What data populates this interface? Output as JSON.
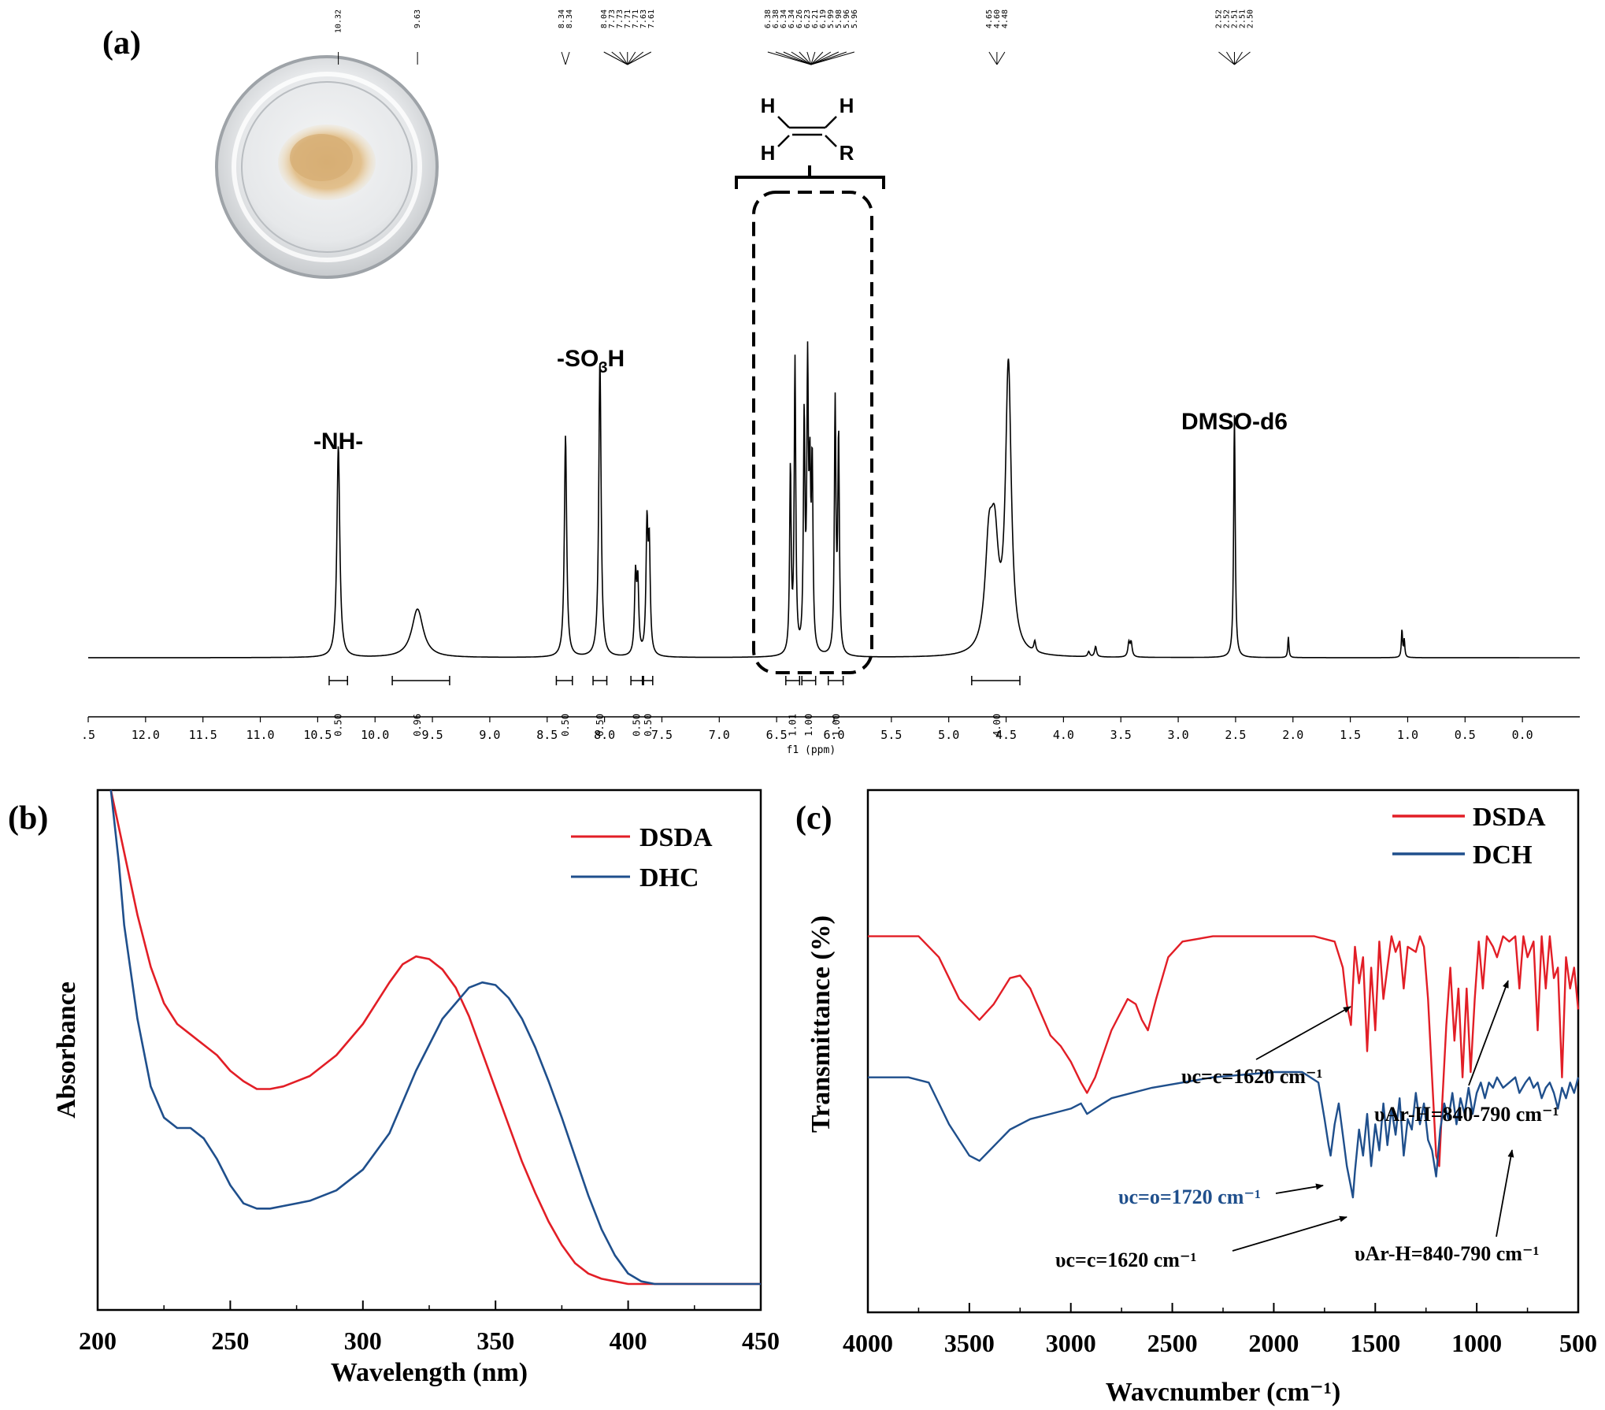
{
  "chart_data": [
    {
      "type": "line",
      "panel": "(a)",
      "xlabel": "f1 (ppm)",
      "xlim": [
        12.5,
        -0.5
      ],
      "xticks": [
        ".5",
        "12.0",
        "11.5",
        "11.0",
        "10.5",
        "10.0",
        "9.5",
        "9.0",
        "8.5",
        "8.0",
        "7.5",
        "7.0",
        "6.5",
        "6.0",
        "5.5",
        "5.0",
        "4.5",
        "4.0",
        "3.5",
        "3.0",
        "2.5",
        "2.0",
        "1.5",
        "1.0",
        "0.5",
        "0.0"
      ],
      "peak_list": [
        {
          "group": "10.32",
          "labels": [
            "10.32"
          ],
          "x": 10.32
        },
        {
          "group": "9.63",
          "labels": [
            "9.63"
          ],
          "x": 9.63
        },
        {
          "group": "8.34",
          "labels": [
            "8.34",
            "8.34"
          ],
          "x": 8.34
        },
        {
          "group": "8.04-7.61",
          "labels": [
            "8.04",
            "7.73",
            "7.73",
            "7.71",
            "7.71",
            "7.63",
            "7.61"
          ],
          "x": 7.8
        },
        {
          "group": "6.38-5.96",
          "labels": [
            "6.38",
            "6.38",
            "6.34",
            "6.34",
            "6.26",
            "6.23",
            "6.21",
            "6.19",
            "5.99",
            "5.98",
            "5.96",
            "5.96"
          ],
          "x": 6.2
        },
        {
          "group": "4.65-4.48",
          "labels": [
            "4.65",
            "4.60",
            "4.48"
          ],
          "x": 4.58
        },
        {
          "group": "2.52-2.50",
          "labels": [
            "2.52",
            "2.52",
            "2.51",
            "2.51",
            "2.50"
          ],
          "x": 2.51
        }
      ],
      "integrals": [
        {
          "x": 10.32,
          "label": "0.50",
          "from": 10.4,
          "to": 10.24
        },
        {
          "x": 9.63,
          "label": "0.96",
          "from": 9.85,
          "to": 9.35
        },
        {
          "x": 8.34,
          "label": "0.50",
          "from": 8.42,
          "to": 8.28
        },
        {
          "x": 8.04,
          "label": "0.50",
          "from": 8.1,
          "to": 7.98
        },
        {
          "x": 7.72,
          "label": "0.50",
          "from": 7.77,
          "to": 7.67
        },
        {
          "x": 7.62,
          "label": "0.50",
          "from": 7.66,
          "to": 7.58
        },
        {
          "x": 6.36,
          "label": "1.01",
          "from": 6.42,
          "to": 6.3
        },
        {
          "x": 6.22,
          "label": "1.00",
          "from": 6.28,
          "to": 6.16
        },
        {
          "x": 5.98,
          "label": "1.00",
          "from": 6.05,
          "to": 5.92
        },
        {
          "x": 4.58,
          "label": "4.00",
          "from": 4.8,
          "to": 4.38
        }
      ],
      "peaks": [
        {
          "x": 10.32,
          "h": 0.61,
          "w": 0.015
        },
        {
          "x": 9.63,
          "h": 0.14,
          "w": 0.06
        },
        {
          "x": 8.34,
          "h": 0.64,
          "w": 0.012
        },
        {
          "x": 8.04,
          "h": 0.86,
          "w": 0.012
        },
        {
          "x": 7.73,
          "h": 0.22,
          "w": 0.01
        },
        {
          "x": 7.71,
          "h": 0.2,
          "w": 0.01
        },
        {
          "x": 7.63,
          "h": 0.36,
          "w": 0.01
        },
        {
          "x": 7.61,
          "h": 0.3,
          "w": 0.01
        },
        {
          "x": 6.38,
          "h": 0.53,
          "w": 0.008
        },
        {
          "x": 6.34,
          "h": 0.84,
          "w": 0.008
        },
        {
          "x": 6.26,
          "h": 0.66,
          "w": 0.008
        },
        {
          "x": 6.23,
          "h": 0.78,
          "w": 0.008
        },
        {
          "x": 6.21,
          "h": 0.44,
          "w": 0.008
        },
        {
          "x": 6.19,
          "h": 0.52,
          "w": 0.008
        },
        {
          "x": 5.99,
          "h": 0.72,
          "w": 0.008
        },
        {
          "x": 5.96,
          "h": 0.62,
          "w": 0.008
        },
        {
          "x": 4.65,
          "h": 0.28,
          "w": 0.04
        },
        {
          "x": 4.6,
          "h": 0.28,
          "w": 0.04
        },
        {
          "x": 4.48,
          "h": 0.82,
          "w": 0.03
        },
        {
          "x": 4.25,
          "h": 0.03,
          "w": 0.01
        },
        {
          "x": 3.78,
          "h": 0.015,
          "w": 0.01
        },
        {
          "x": 3.72,
          "h": 0.03,
          "w": 0.01
        },
        {
          "x": 3.43,
          "h": 0.04,
          "w": 0.01
        },
        {
          "x": 3.41,
          "h": 0.04,
          "w": 0.01
        },
        {
          "x": 2.51,
          "h": 0.7,
          "w": 0.008
        },
        {
          "x": 2.04,
          "h": 0.06,
          "w": 0.006
        },
        {
          "x": 1.05,
          "h": 0.08,
          "w": 0.006
        },
        {
          "x": 1.03,
          "h": 0.05,
          "w": 0.006
        }
      ],
      "annotations": [
        {
          "text": "-NH-",
          "x": 10.32
        },
        {
          "text": "-SO3H",
          "x": 8.04
        },
        {
          "text": "DMSO-d6",
          "x": 2.51
        }
      ],
      "structure": {
        "atoms": [
          "H",
          "H",
          "H",
          "R"
        ]
      }
    },
    {
      "type": "line",
      "panel": "(b)",
      "xlabel": "Wavelength (nm)",
      "ylabel": "Absorbance",
      "xlim": [
        200,
        450
      ],
      "ylim": [
        0,
        1
      ],
      "xticks": [
        200,
        250,
        300,
        350,
        400,
        450
      ],
      "legend_position": "top-right",
      "series": [
        {
          "name": "DSDA",
          "color": "#e21e26",
          "x": [
            205,
            210,
            215,
            220,
            225,
            230,
            235,
            240,
            245,
            250,
            255,
            260,
            265,
            270,
            280,
            290,
            300,
            310,
            315,
            320,
            325,
            330,
            335,
            340,
            345,
            350,
            355,
            360,
            365,
            370,
            375,
            380,
            385,
            390,
            395,
            400,
            410,
            420,
            450
          ],
          "y": [
            1.0,
            0.88,
            0.76,
            0.66,
            0.59,
            0.55,
            0.53,
            0.51,
            0.49,
            0.46,
            0.44,
            0.425,
            0.425,
            0.43,
            0.45,
            0.49,
            0.55,
            0.63,
            0.665,
            0.68,
            0.675,
            0.655,
            0.62,
            0.565,
            0.495,
            0.425,
            0.355,
            0.285,
            0.225,
            0.17,
            0.125,
            0.09,
            0.07,
            0.06,
            0.055,
            0.05,
            0.05,
            0.05,
            0.05
          ]
        },
        {
          "name": "DHC",
          "color": "#1f4f8c",
          "x": [
            205,
            208,
            210,
            215,
            220,
            225,
            230,
            235,
            240,
            245,
            250,
            255,
            260,
            265,
            270,
            280,
            290,
            300,
            310,
            320,
            330,
            340,
            345,
            350,
            355,
            360,
            365,
            370,
            375,
            380,
            385,
            390,
            395,
            400,
            405,
            410,
            420,
            450
          ],
          "y": [
            1.0,
            0.86,
            0.74,
            0.56,
            0.43,
            0.37,
            0.35,
            0.35,
            0.33,
            0.29,
            0.24,
            0.205,
            0.195,
            0.195,
            0.2,
            0.21,
            0.23,
            0.27,
            0.34,
            0.46,
            0.56,
            0.62,
            0.63,
            0.625,
            0.6,
            0.56,
            0.505,
            0.44,
            0.37,
            0.295,
            0.22,
            0.155,
            0.105,
            0.07,
            0.055,
            0.05,
            0.05,
            0.05
          ]
        }
      ]
    },
    {
      "type": "line",
      "panel": "(c)",
      "xlabel": "Wavcnumber (cm⁻¹)",
      "ylabel": "Transmittance (%)",
      "xlim": [
        4000,
        500
      ],
      "ylim": [
        0,
        1
      ],
      "xticks": [
        4000,
        3500,
        3000,
        2500,
        2000,
        1500,
        1000,
        500
      ],
      "legend_position": "top-right",
      "series": [
        {
          "name": "DSDA",
          "color": "#e21e26",
          "x": [
            4000,
            3750,
            3650,
            3550,
            3450,
            3380,
            3300,
            3250,
            3200,
            3100,
            3050,
            3000,
            2950,
            2920,
            2880,
            2800,
            2720,
            2680,
            2650,
            2620,
            2580,
            2520,
            2450,
            2300,
            2000,
            1800,
            1700,
            1660,
            1640,
            1620,
            1600,
            1580,
            1560,
            1540,
            1520,
            1500,
            1480,
            1460,
            1440,
            1420,
            1400,
            1380,
            1360,
            1340,
            1300,
            1280,
            1260,
            1240,
            1220,
            1200,
            1185,
            1170,
            1150,
            1130,
            1110,
            1090,
            1070,
            1050,
            1030,
            1010,
            990,
            970,
            950,
            920,
            900,
            870,
            840,
            810,
            790,
            770,
            750,
            720,
            700,
            680,
            660,
            640,
            620,
            600,
            580,
            560,
            540,
            520,
            500
          ],
          "y": [
            0.72,
            0.72,
            0.68,
            0.6,
            0.56,
            0.59,
            0.64,
            0.645,
            0.62,
            0.53,
            0.51,
            0.48,
            0.44,
            0.42,
            0.45,
            0.54,
            0.6,
            0.59,
            0.56,
            0.54,
            0.6,
            0.68,
            0.71,
            0.72,
            0.72,
            0.72,
            0.71,
            0.66,
            0.59,
            0.55,
            0.7,
            0.63,
            0.68,
            0.5,
            0.66,
            0.54,
            0.71,
            0.6,
            0.66,
            0.72,
            0.69,
            0.71,
            0.62,
            0.7,
            0.69,
            0.72,
            0.7,
            0.6,
            0.45,
            0.3,
            0.28,
            0.4,
            0.55,
            0.66,
            0.52,
            0.62,
            0.45,
            0.62,
            0.46,
            0.6,
            0.71,
            0.62,
            0.72,
            0.7,
            0.68,
            0.72,
            0.71,
            0.72,
            0.62,
            0.72,
            0.68,
            0.71,
            0.54,
            0.72,
            0.62,
            0.72,
            0.64,
            0.66,
            0.45,
            0.68,
            0.62,
            0.66,
            0.58
          ]
        },
        {
          "name": "DCH",
          "color": "#1f4f8c",
          "x": [
            4000,
            3800,
            3700,
            3600,
            3500,
            3450,
            3400,
            3300,
            3200,
            3100,
            3000,
            2950,
            2920,
            2880,
            2800,
            2600,
            2300,
            2000,
            1860,
            1780,
            1750,
            1730,
            1720,
            1700,
            1680,
            1660,
            1640,
            1620,
            1610,
            1600,
            1580,
            1560,
            1540,
            1520,
            1500,
            1480,
            1460,
            1440,
            1420,
            1400,
            1380,
            1360,
            1340,
            1320,
            1300,
            1280,
            1260,
            1240,
            1220,
            1200,
            1180,
            1160,
            1140,
            1120,
            1100,
            1080,
            1060,
            1040,
            1020,
            1000,
            980,
            960,
            940,
            920,
            900,
            870,
            840,
            810,
            790,
            760,
            740,
            720,
            700,
            680,
            660,
            640,
            620,
            600,
            580,
            560,
            540,
            520,
            500
          ],
          "y": [
            0.45,
            0.45,
            0.44,
            0.36,
            0.3,
            0.29,
            0.31,
            0.35,
            0.37,
            0.38,
            0.39,
            0.4,
            0.38,
            0.39,
            0.41,
            0.43,
            0.45,
            0.46,
            0.46,
            0.44,
            0.37,
            0.32,
            0.3,
            0.36,
            0.4,
            0.34,
            0.28,
            0.24,
            0.22,
            0.27,
            0.35,
            0.3,
            0.38,
            0.28,
            0.36,
            0.31,
            0.4,
            0.32,
            0.39,
            0.34,
            0.41,
            0.3,
            0.37,
            0.35,
            0.42,
            0.36,
            0.4,
            0.33,
            0.31,
            0.26,
            0.35,
            0.4,
            0.37,
            0.42,
            0.36,
            0.41,
            0.38,
            0.43,
            0.38,
            0.42,
            0.44,
            0.41,
            0.44,
            0.43,
            0.45,
            0.43,
            0.44,
            0.45,
            0.42,
            0.44,
            0.45,
            0.43,
            0.44,
            0.41,
            0.43,
            0.44,
            0.42,
            0.39,
            0.43,
            0.41,
            0.44,
            0.42,
            0.45
          ]
        }
      ],
      "annotations": [
        {
          "text": "υc=c=1620 cm⁻¹",
          "series": "DSDA",
          "x": 1620
        },
        {
          "text": "υAr-H=840-790 cm⁻¹",
          "series": "DSDA",
          "x": 840
        },
        {
          "text": "υc=o=1720 cm⁻¹",
          "series": "DCH",
          "x": 1720
        },
        {
          "text": "υc=c=1620 cm⁻¹",
          "series": "DCH",
          "x": 1620
        },
        {
          "text": "υAr-H=840-790 cm⁻¹",
          "series": "DCH",
          "x": 840
        }
      ]
    }
  ]
}
